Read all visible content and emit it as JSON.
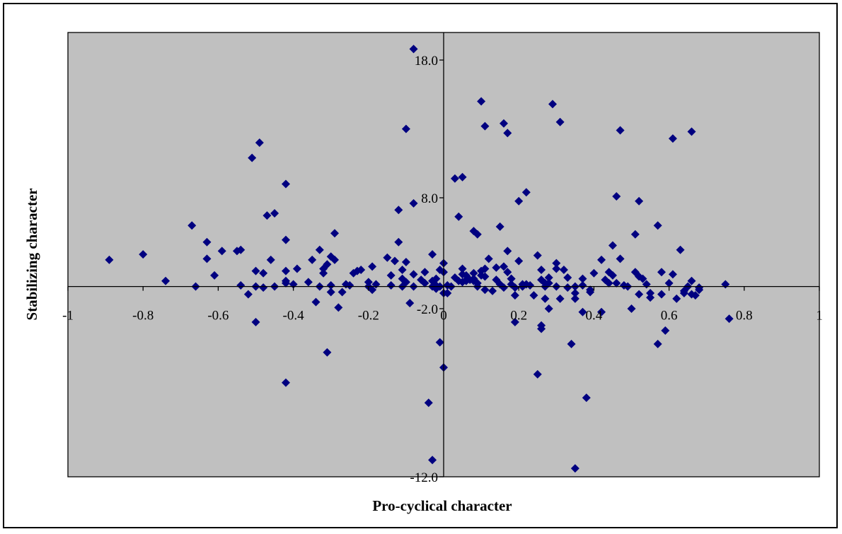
{
  "chart_data": {
    "type": "scatter",
    "title": "",
    "xlabel": "Pro-cyclical character",
    "ylabel": "Stabilizing character",
    "xlim": [
      -1,
      1
    ],
    "ylim": [
      -12,
      20
    ],
    "x_ticks": [
      -1,
      -0.8,
      -0.6,
      -0.4,
      -0.2,
      0,
      0.2,
      0.4,
      0.6,
      0.8,
      1
    ],
    "x_tick_labels": [
      "-1",
      "-0.8",
      "-0.6",
      "-0.4",
      "-0.2",
      "0",
      "0.2",
      "0.4",
      "0.6",
      "0.8",
      "1"
    ],
    "y_ticks": [
      -12,
      -2,
      8,
      18
    ],
    "y_tick_labels": [
      "-12.0",
      "-2.0",
      "8.0",
      "18.0"
    ],
    "grid": false,
    "legend": "none",
    "colors": {
      "plot_bg": "#c0c0c0",
      "marker": "#000080",
      "axis": "#000000"
    },
    "series": [
      {
        "marker": "diamond",
        "points": [
          [
            -0.89,
            2.4
          ],
          [
            -0.8,
            2.9
          ],
          [
            -0.74,
            0.5
          ],
          [
            -0.67,
            5.5
          ],
          [
            -0.66,
            0.0
          ],
          [
            -0.63,
            4.0
          ],
          [
            -0.63,
            2.5
          ],
          [
            -0.61,
            1.0
          ],
          [
            -0.59,
            3.2
          ],
          [
            -0.55,
            3.2
          ],
          [
            -0.54,
            3.3
          ],
          [
            -0.54,
            0.1
          ],
          [
            -0.52,
            -0.7
          ],
          [
            -0.51,
            10.9
          ],
          [
            -0.5,
            1.4
          ],
          [
            -0.5,
            0.0
          ],
          [
            -0.5,
            -2.8
          ],
          [
            -0.49,
            12.0
          ],
          [
            -0.48,
            1.2
          ],
          [
            -0.48,
            -0.1
          ],
          [
            -0.47,
            6.4
          ],
          [
            -0.46,
            2.4
          ],
          [
            -0.45,
            6.6
          ],
          [
            -0.45,
            0.0
          ],
          [
            -0.42,
            4.2
          ],
          [
            -0.42,
            1.4
          ],
          [
            -0.42,
            0.5
          ],
          [
            -0.42,
            0.3
          ],
          [
            -0.42,
            9.0
          ],
          [
            -0.42,
            -6.4
          ],
          [
            -0.4,
            0.2
          ],
          [
            -0.39,
            1.6
          ],
          [
            -0.36,
            0.4
          ],
          [
            -0.35,
            2.4
          ],
          [
            -0.34,
            -1.4
          ],
          [
            -0.33,
            3.3
          ],
          [
            -0.33,
            0.0
          ],
          [
            -0.32,
            1.2
          ],
          [
            -0.32,
            1.6
          ],
          [
            -0.31,
            2.0
          ],
          [
            -0.31,
            -4.6
          ],
          [
            -0.3,
            0.1
          ],
          [
            -0.3,
            -0.5
          ],
          [
            -0.3,
            2.7
          ],
          [
            -0.29,
            4.8
          ],
          [
            -0.29,
            2.4
          ],
          [
            -0.28,
            -1.9
          ],
          [
            -0.27,
            -0.5
          ],
          [
            -0.26,
            0.2
          ],
          [
            -0.25,
            0.1
          ],
          [
            -0.24,
            1.2
          ],
          [
            -0.23,
            1.4
          ],
          [
            -0.22,
            1.5
          ],
          [
            -0.2,
            0.0
          ],
          [
            -0.2,
            0.4
          ],
          [
            -0.19,
            1.8
          ],
          [
            -0.19,
            -0.3
          ],
          [
            -0.18,
            0.2
          ],
          [
            -0.15,
            2.6
          ],
          [
            -0.14,
            0.1
          ],
          [
            -0.14,
            1.0
          ],
          [
            -0.13,
            2.3
          ],
          [
            -0.12,
            6.9
          ],
          [
            -0.12,
            4.0
          ],
          [
            -0.11,
            0.7
          ],
          [
            -0.11,
            0.0
          ],
          [
            -0.11,
            1.5
          ],
          [
            -0.1,
            2.2
          ],
          [
            -0.1,
            0.4
          ],
          [
            -0.1,
            13.0
          ],
          [
            -0.09,
            -1.5
          ],
          [
            -0.08,
            7.5
          ],
          [
            -0.08,
            18.8
          ],
          [
            -0.08,
            1.1
          ],
          [
            -0.08,
            0.0
          ],
          [
            -0.06,
            0.6
          ],
          [
            -0.05,
            0.3
          ],
          [
            -0.05,
            1.3
          ],
          [
            -0.04,
            -7.6
          ],
          [
            -0.03,
            -11.0
          ],
          [
            -0.03,
            2.9
          ],
          [
            -0.03,
            0.5
          ],
          [
            -0.03,
            0.0
          ],
          [
            -0.02,
            -0.2
          ],
          [
            -0.02,
            0.1
          ],
          [
            -0.02,
            0.7
          ],
          [
            -0.01,
            1.5
          ],
          [
            -0.01,
            -4.0
          ],
          [
            -0.01,
            0.0
          ],
          [
            0.0,
            2.1
          ],
          [
            0.0,
            1.3
          ],
          [
            0.0,
            -0.6
          ],
          [
            0.0,
            -5.5
          ],
          [
            0.01,
            -0.6
          ],
          [
            0.01,
            0.1
          ],
          [
            0.02,
            0.0
          ],
          [
            0.03,
            0.8
          ],
          [
            0.03,
            9.4
          ],
          [
            0.04,
            0.5
          ],
          [
            0.04,
            6.3
          ],
          [
            0.05,
            1.1
          ],
          [
            0.05,
            9.5
          ],
          [
            0.05,
            1.6
          ],
          [
            0.05,
            0.4
          ],
          [
            0.06,
            0.6
          ],
          [
            0.06,
            1.0
          ],
          [
            0.06,
            0.5
          ],
          [
            0.07,
            0.6
          ],
          [
            0.08,
            0.7
          ],
          [
            0.08,
            0.5
          ],
          [
            0.08,
            5.0
          ],
          [
            0.08,
            1.2
          ],
          [
            0.09,
            0.3
          ],
          [
            0.09,
            0.0
          ],
          [
            0.09,
            4.7
          ],
          [
            0.1,
            1.0
          ],
          [
            0.1,
            1.4
          ],
          [
            0.1,
            15.0
          ],
          [
            0.11,
            0.9
          ],
          [
            0.11,
            -0.3
          ],
          [
            0.11,
            1.6
          ],
          [
            0.11,
            13.2
          ],
          [
            0.12,
            2.5
          ],
          [
            0.13,
            -0.4
          ],
          [
            0.14,
            1.7
          ],
          [
            0.14,
            0.6
          ],
          [
            0.15,
            0.2
          ],
          [
            0.15,
            5.4
          ],
          [
            0.16,
            13.4
          ],
          [
            0.16,
            1.8
          ],
          [
            0.16,
            -0.1
          ],
          [
            0.17,
            1.3
          ],
          [
            0.17,
            12.7
          ],
          [
            0.17,
            3.2
          ],
          [
            0.18,
            0.7
          ],
          [
            0.18,
            0.2
          ],
          [
            0.18,
            0.7
          ],
          [
            0.19,
            -0.8
          ],
          [
            0.19,
            -2.8
          ],
          [
            0.19,
            -0.1
          ],
          [
            0.2,
            7.7
          ],
          [
            0.2,
            2.3
          ],
          [
            0.21,
            0.2
          ],
          [
            0.21,
            0.0
          ],
          [
            0.22,
            8.4
          ],
          [
            0.22,
            0.2
          ],
          [
            0.23,
            0.1
          ],
          [
            0.24,
            -0.8
          ],
          [
            0.25,
            2.8
          ],
          [
            0.25,
            -5.9
          ],
          [
            0.26,
            1.5
          ],
          [
            0.26,
            -3.2
          ],
          [
            0.26,
            -3.0
          ],
          [
            0.26,
            0.6
          ],
          [
            0.27,
            0.3
          ],
          [
            0.27,
            0.0
          ],
          [
            0.27,
            -1.1
          ],
          [
            0.28,
            0.3
          ],
          [
            0.28,
            -2.0
          ],
          [
            0.28,
            0.8
          ],
          [
            0.29,
            14.8
          ],
          [
            0.3,
            2.1
          ],
          [
            0.3,
            1.6
          ],
          [
            0.3,
            0.0
          ],
          [
            0.31,
            -1.1
          ],
          [
            0.31,
            13.5
          ],
          [
            0.32,
            1.5
          ],
          [
            0.33,
            -0.1
          ],
          [
            0.33,
            0.8
          ],
          [
            0.34,
            -4.1
          ],
          [
            0.35,
            -11.5
          ],
          [
            0.35,
            0.0
          ],
          [
            0.35,
            -0.6
          ],
          [
            0.35,
            -1.1
          ],
          [
            0.37,
            0.7
          ],
          [
            0.37,
            0.1
          ],
          [
            0.37,
            -2.2
          ],
          [
            0.38,
            -7.3
          ],
          [
            0.39,
            -0.5
          ],
          [
            0.39,
            -0.3
          ],
          [
            0.4,
            1.2
          ],
          [
            0.42,
            -2.2
          ],
          [
            0.42,
            2.4
          ],
          [
            0.43,
            0.6
          ],
          [
            0.44,
            0.3
          ],
          [
            0.44,
            1.3
          ],
          [
            0.45,
            3.7
          ],
          [
            0.45,
            1.0
          ],
          [
            0.46,
            8.1
          ],
          [
            0.46,
            0.3
          ],
          [
            0.47,
            2.5
          ],
          [
            0.47,
            12.9
          ],
          [
            0.48,
            0.1
          ],
          [
            0.49,
            0.0
          ],
          [
            0.5,
            -2.0
          ],
          [
            0.51,
            4.7
          ],
          [
            0.51,
            1.3
          ],
          [
            0.52,
            7.7
          ],
          [
            0.52,
            -0.7
          ],
          [
            0.52,
            0.9
          ],
          [
            0.53,
            0.7
          ],
          [
            0.54,
            0.2
          ],
          [
            0.55,
            -1.0
          ],
          [
            0.55,
            -0.6
          ],
          [
            0.57,
            5.5
          ],
          [
            0.57,
            -4.1
          ],
          [
            0.58,
            -0.7
          ],
          [
            0.58,
            1.3
          ],
          [
            0.59,
            -3.3
          ],
          [
            0.6,
            0.3
          ],
          [
            0.61,
            1.1
          ],
          [
            0.61,
            12.3
          ],
          [
            0.62,
            -1.1
          ],
          [
            0.63,
            3.3
          ],
          [
            0.64,
            -0.4
          ],
          [
            0.64,
            -0.6
          ],
          [
            0.65,
            0.0
          ],
          [
            0.66,
            12.8
          ],
          [
            0.66,
            -0.7
          ],
          [
            0.66,
            0.5
          ],
          [
            0.67,
            -0.8
          ],
          [
            0.68,
            -0.3
          ],
          [
            0.68,
            -0.1
          ],
          [
            0.75,
            0.2
          ],
          [
            0.76,
            -2.6
          ]
        ]
      }
    ]
  }
}
